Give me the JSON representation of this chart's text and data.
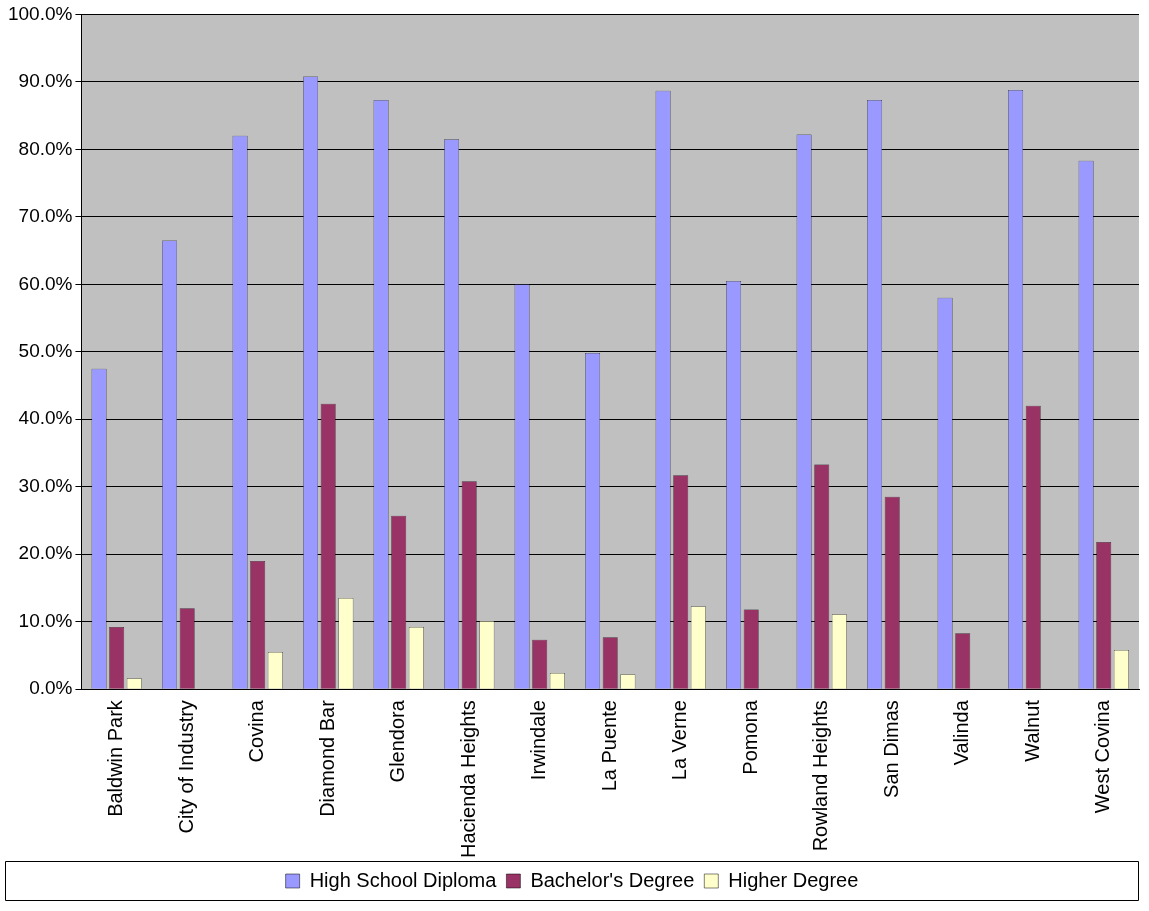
{
  "chart_data": {
    "type": "bar",
    "categories": [
      "Baldwin Park",
      "City of Industry",
      "Covina",
      "Diamond Bar",
      "Glendora",
      "Hacienda Heights",
      "Irwindale",
      "La Puente",
      "La Verne",
      "Pomona",
      "Rowland Heights",
      "San Dimas",
      "Valinda",
      "Walnut",
      "West Covina"
    ],
    "series": [
      {
        "name": "High School Diploma",
        "color": "#9999ff",
        "values": [
          47.5,
          66.5,
          82,
          90.8,
          87.3,
          81.5,
          60,
          49.8,
          88.7,
          60.5,
          82.2,
          87.3,
          58,
          88.8,
          78.3
        ]
      },
      {
        "name": "Bachelor's Degree",
        "color": "#993366",
        "values": [
          9.2,
          12,
          19,
          42.3,
          25.7,
          30.8,
          7.3,
          7.7,
          31.7,
          11.8,
          33.3,
          28.5,
          8.3,
          42,
          21.8
        ]
      },
      {
        "name": "Higher Degree",
        "color": "#ffffcc",
        "values": [
          1.6,
          0,
          5.5,
          13.5,
          9.2,
          10.1,
          2.4,
          2.2,
          12.3,
          0,
          11.1,
          0,
          0,
          0,
          5.8
        ]
      }
    ],
    "ylim": [
      0,
      100
    ],
    "yticks": [
      {
        "value": 0,
        "label": "0.0%"
      },
      {
        "value": 10,
        "label": "10.0%"
      },
      {
        "value": 20,
        "label": "20.0%"
      },
      {
        "value": 30,
        "label": "30.0%"
      },
      {
        "value": 40,
        "label": "40.0%"
      },
      {
        "value": 50,
        "label": "50.0%"
      },
      {
        "value": 60,
        "label": "60.0%"
      },
      {
        "value": 70,
        "label": "70.0%"
      },
      {
        "value": 80,
        "label": "80.0%"
      },
      {
        "value": 90,
        "label": "90.0%"
      },
      {
        "value": 100,
        "label": "100.0%"
      }
    ],
    "grid": "y",
    "legend": "bottom"
  }
}
